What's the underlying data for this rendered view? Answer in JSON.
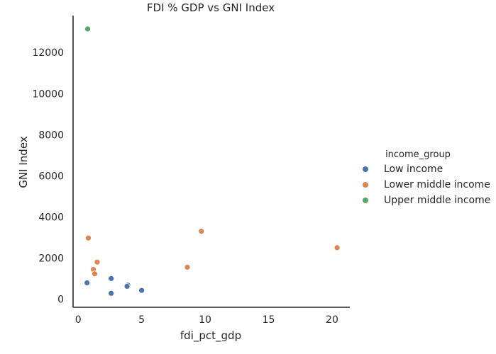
{
  "chart_data": {
    "type": "scatter",
    "title": "FDI % GDP vs GNI Index",
    "xlabel": "fdi_pct_gdp",
    "ylabel": "GNI Index",
    "xlim": [
      -0.4,
      21.4
    ],
    "ylim": [
      -400,
      13800
    ],
    "x_ticks": [
      0,
      5,
      10,
      15,
      20
    ],
    "y_ticks": [
      0,
      2000,
      4000,
      6000,
      8000,
      10000,
      12000
    ],
    "grid": false,
    "legend": {
      "title": "income_group",
      "placement": "right"
    },
    "series": [
      {
        "name": "Low income",
        "color": "#4c72b0",
        "points": [
          {
            "x": 0.7,
            "y": 790
          },
          {
            "x": 2.6,
            "y": 1000
          },
          {
            "x": 2.6,
            "y": 280
          },
          {
            "x": 3.9,
            "y": 680
          },
          {
            "x": 3.85,
            "y": 620
          },
          {
            "x": 5.0,
            "y": 420
          }
        ]
      },
      {
        "name": "Lower middle income",
        "color": "#dd8452",
        "points": [
          {
            "x": 0.8,
            "y": 2970
          },
          {
            "x": 1.5,
            "y": 1800
          },
          {
            "x": 1.2,
            "y": 1440
          },
          {
            "x": 1.3,
            "y": 1230
          },
          {
            "x": 8.6,
            "y": 1550
          },
          {
            "x": 9.7,
            "y": 3300
          },
          {
            "x": 20.4,
            "y": 2500
          }
        ]
      },
      {
        "name": "Upper middle income",
        "color": "#55a868",
        "points": [
          {
            "x": 0.75,
            "y": 13150
          }
        ]
      }
    ]
  }
}
